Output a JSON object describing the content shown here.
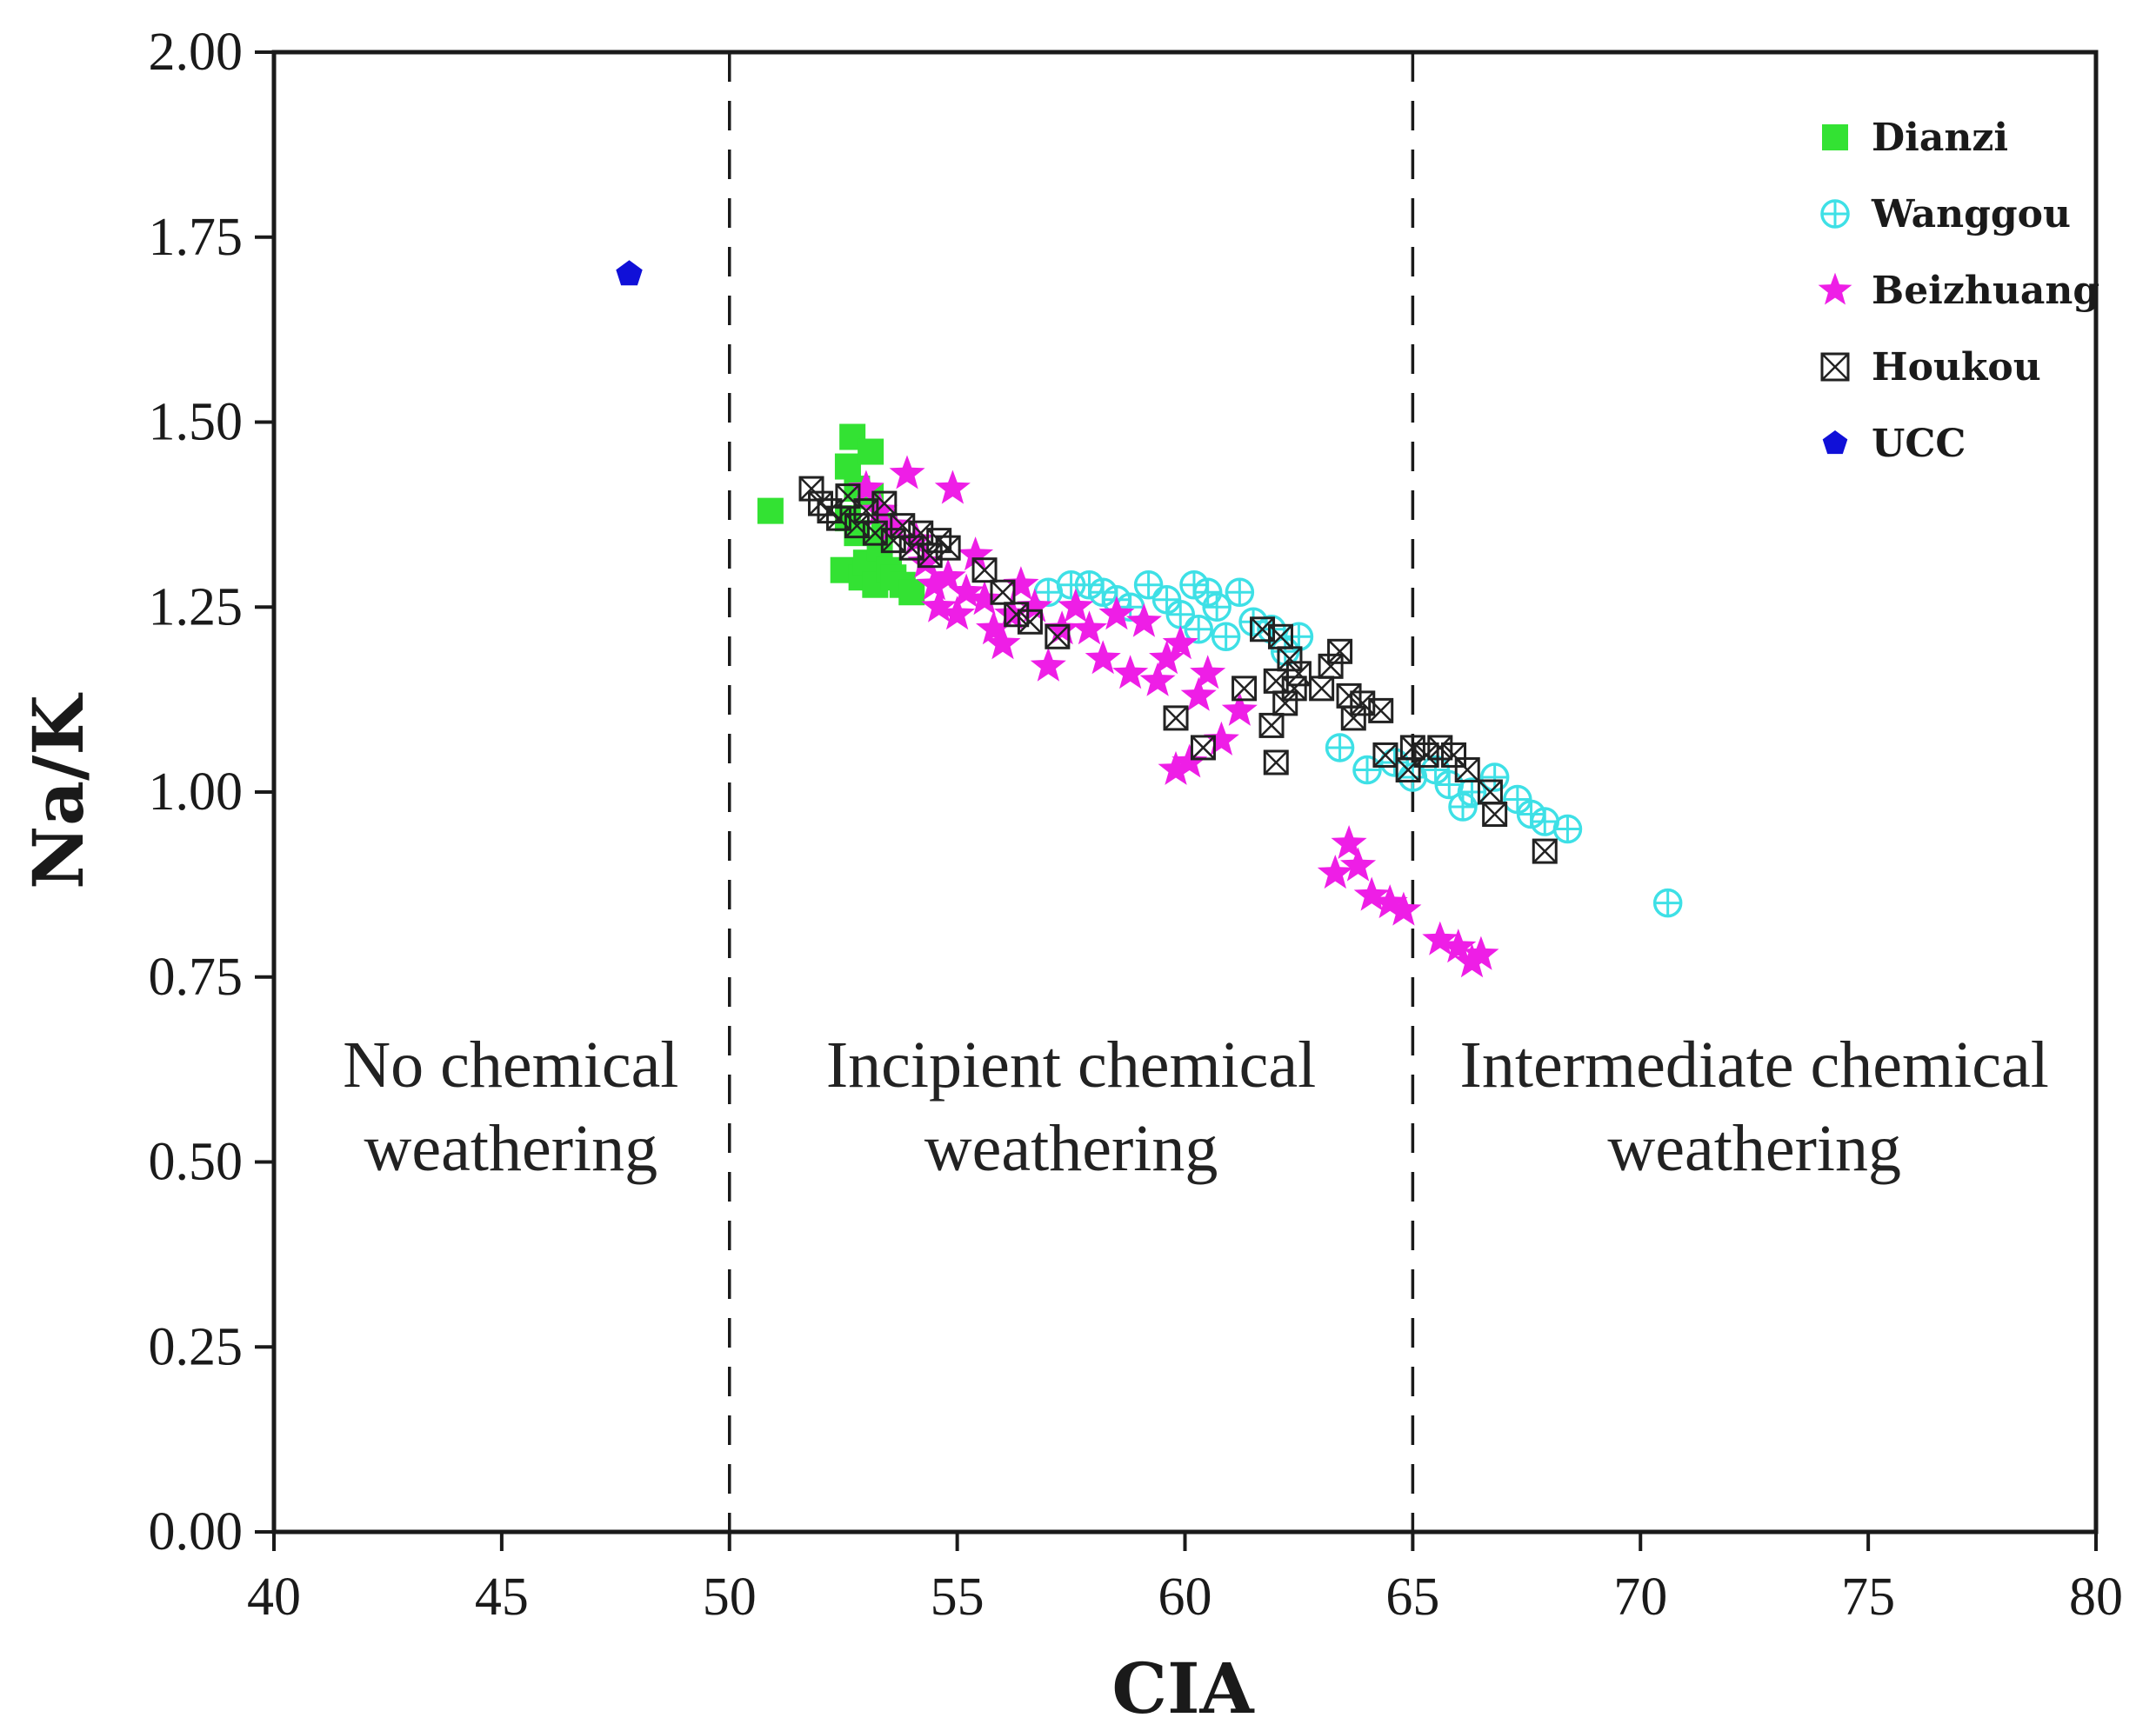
{
  "chart_data": {
    "type": "scatter",
    "title": "",
    "xlabel": "CIA",
    "ylabel": "Na/K",
    "xlim": [
      40,
      80
    ],
    "ylim": [
      0,
      2
    ],
    "xticks": [
      40,
      45,
      50,
      55,
      60,
      65,
      70,
      75,
      80
    ],
    "yticks": [
      0,
      0.25,
      0.5,
      0.75,
      1.0,
      1.25,
      1.5,
      1.75,
      2.0
    ],
    "xtick_labels": [
      "40",
      "45",
      "50",
      "55",
      "60",
      "65",
      "70",
      "75",
      "80"
    ],
    "ytick_labels": [
      "0.00",
      "0.25",
      "0.50",
      "0.75",
      "1.00",
      "1.25",
      "1.50",
      "1.75",
      "2.00"
    ],
    "grid": false,
    "legend_position": "top-right",
    "boundaries": [
      50,
      65,
      80
    ],
    "zones": [
      {
        "x_center": 45.2,
        "lines": [
          "No chemical",
          "weathering"
        ]
      },
      {
        "x_center": 57.5,
        "lines": [
          "Incipient chemical",
          "weathering"
        ]
      },
      {
        "x_center": 72.5,
        "lines": [
          "Intermediate chemical",
          "weathering"
        ]
      }
    ],
    "colors": {
      "Dianzi": "#33e233",
      "Wanggou": "#3ee0e6",
      "Beizhuang": "#ee1ee6",
      "Houkou": "#222222",
      "UCC": "#1010d8"
    },
    "series": [
      {
        "name": "Dianzi",
        "marker": "square",
        "points": [
          [
            50.9,
            1.38
          ],
          [
            52.5,
            1.3
          ],
          [
            52.6,
            1.44
          ],
          [
            52.7,
            1.48
          ],
          [
            52.8,
            1.41
          ],
          [
            52.8,
            1.35
          ],
          [
            52.9,
            1.29
          ],
          [
            53.0,
            1.31
          ],
          [
            53.1,
            1.46
          ],
          [
            53.2,
            1.28
          ],
          [
            53.3,
            1.33
          ],
          [
            53.4,
            1.36
          ],
          [
            53.5,
            1.3
          ],
          [
            53.6,
            1.29
          ],
          [
            53.8,
            1.28
          ],
          [
            54.0,
            1.27
          ],
          [
            53.1,
            1.4
          ],
          [
            52.6,
            1.37
          ]
        ]
      },
      {
        "name": "Wanggou",
        "marker": "crossed-circle",
        "points": [
          [
            57.0,
            1.27
          ],
          [
            57.5,
            1.28
          ],
          [
            57.9,
            1.28
          ],
          [
            58.2,
            1.27
          ],
          [
            58.5,
            1.26
          ],
          [
            58.8,
            1.25
          ],
          [
            59.2,
            1.28
          ],
          [
            59.6,
            1.26
          ],
          [
            59.9,
            1.24
          ],
          [
            60.2,
            1.28
          ],
          [
            60.3,
            1.22
          ],
          [
            60.5,
            1.27
          ],
          [
            60.7,
            1.25
          ],
          [
            60.9,
            1.21
          ],
          [
            61.2,
            1.27
          ],
          [
            61.5,
            1.23
          ],
          [
            61.9,
            1.22
          ],
          [
            62.2,
            1.19
          ],
          [
            62.5,
            1.21
          ],
          [
            63.4,
            1.06
          ],
          [
            64.0,
            1.03
          ],
          [
            64.6,
            1.04
          ],
          [
            65.0,
            1.02
          ],
          [
            65.5,
            1.03
          ],
          [
            65.8,
            1.01
          ],
          [
            66.1,
            0.98
          ],
          [
            66.3,
            1.0
          ],
          [
            66.8,
            1.02
          ],
          [
            67.3,
            0.99
          ],
          [
            67.6,
            0.97
          ],
          [
            67.9,
            0.96
          ],
          [
            68.4,
            0.95
          ],
          [
            70.6,
            0.85
          ]
        ]
      },
      {
        "name": "Beizhuang",
        "marker": "star",
        "points": [
          [
            53.0,
            1.41
          ],
          [
            53.3,
            1.38
          ],
          [
            53.6,
            1.36
          ],
          [
            53.9,
            1.43
          ],
          [
            54.1,
            1.34
          ],
          [
            54.3,
            1.31
          ],
          [
            54.5,
            1.28
          ],
          [
            54.6,
            1.25
          ],
          [
            54.8,
            1.29
          ],
          [
            54.9,
            1.41
          ],
          [
            55.0,
            1.24
          ],
          [
            55.2,
            1.27
          ],
          [
            55.4,
            1.32
          ],
          [
            55.6,
            1.26
          ],
          [
            55.8,
            1.22
          ],
          [
            56.0,
            1.2
          ],
          [
            56.2,
            1.24
          ],
          [
            56.4,
            1.28
          ],
          [
            56.7,
            1.25
          ],
          [
            57.0,
            1.17
          ],
          [
            57.3,
            1.22
          ],
          [
            57.6,
            1.25
          ],
          [
            57.9,
            1.22
          ],
          [
            58.2,
            1.18
          ],
          [
            58.5,
            1.24
          ],
          [
            58.8,
            1.16
          ],
          [
            59.1,
            1.23
          ],
          [
            59.4,
            1.15
          ],
          [
            59.6,
            1.18
          ],
          [
            59.9,
            1.2
          ],
          [
            60.1,
            1.04
          ],
          [
            60.3,
            1.13
          ],
          [
            60.5,
            1.16
          ],
          [
            60.8,
            1.07
          ],
          [
            61.2,
            1.11
          ],
          [
            59.8,
            1.03
          ],
          [
            63.3,
            0.89
          ],
          [
            63.6,
            0.93
          ],
          [
            63.8,
            0.9
          ],
          [
            64.1,
            0.86
          ],
          [
            64.5,
            0.85
          ],
          [
            64.8,
            0.84
          ],
          [
            65.6,
            0.8
          ],
          [
            66.0,
            0.79
          ],
          [
            66.3,
            0.77
          ],
          [
            66.5,
            0.78
          ]
        ]
      },
      {
        "name": "Houkou",
        "marker": "crossed-square",
        "points": [
          [
            51.8,
            1.41
          ],
          [
            52.0,
            1.39
          ],
          [
            52.2,
            1.38
          ],
          [
            52.4,
            1.37
          ],
          [
            52.6,
            1.4
          ],
          [
            52.8,
            1.36
          ],
          [
            53.0,
            1.38
          ],
          [
            53.2,
            1.35
          ],
          [
            53.4,
            1.39
          ],
          [
            53.6,
            1.34
          ],
          [
            53.8,
            1.36
          ],
          [
            54.0,
            1.33
          ],
          [
            54.2,
            1.35
          ],
          [
            54.4,
            1.32
          ],
          [
            54.6,
            1.34
          ],
          [
            54.8,
            1.33
          ],
          [
            55.6,
            1.3
          ],
          [
            56.0,
            1.27
          ],
          [
            56.3,
            1.24
          ],
          [
            56.6,
            1.23
          ],
          [
            57.2,
            1.21
          ],
          [
            59.8,
            1.1
          ],
          [
            60.4,
            1.06
          ],
          [
            61.3,
            1.14
          ],
          [
            61.7,
            1.22
          ],
          [
            61.9,
            1.09
          ],
          [
            62.0,
            1.15
          ],
          [
            62.0,
            1.04
          ],
          [
            62.1,
            1.21
          ],
          [
            62.2,
            1.12
          ],
          [
            62.3,
            1.18
          ],
          [
            62.4,
            1.14
          ],
          [
            62.5,
            1.16
          ],
          [
            63.0,
            1.14
          ],
          [
            63.2,
            1.17
          ],
          [
            63.4,
            1.19
          ],
          [
            63.6,
            1.13
          ],
          [
            63.7,
            1.1
          ],
          [
            63.9,
            1.12
          ],
          [
            64.3,
            1.11
          ],
          [
            64.4,
            1.05
          ],
          [
            64.9,
            1.03
          ],
          [
            65.0,
            1.06
          ],
          [
            65.3,
            1.05
          ],
          [
            65.6,
            1.06
          ],
          [
            65.9,
            1.05
          ],
          [
            66.2,
            1.03
          ],
          [
            66.7,
            1.0
          ],
          [
            66.8,
            0.97
          ],
          [
            67.9,
            0.92
          ]
        ]
      },
      {
        "name": "UCC",
        "marker": "pentagon",
        "points": [
          [
            47.8,
            1.7
          ]
        ]
      }
    ]
  }
}
